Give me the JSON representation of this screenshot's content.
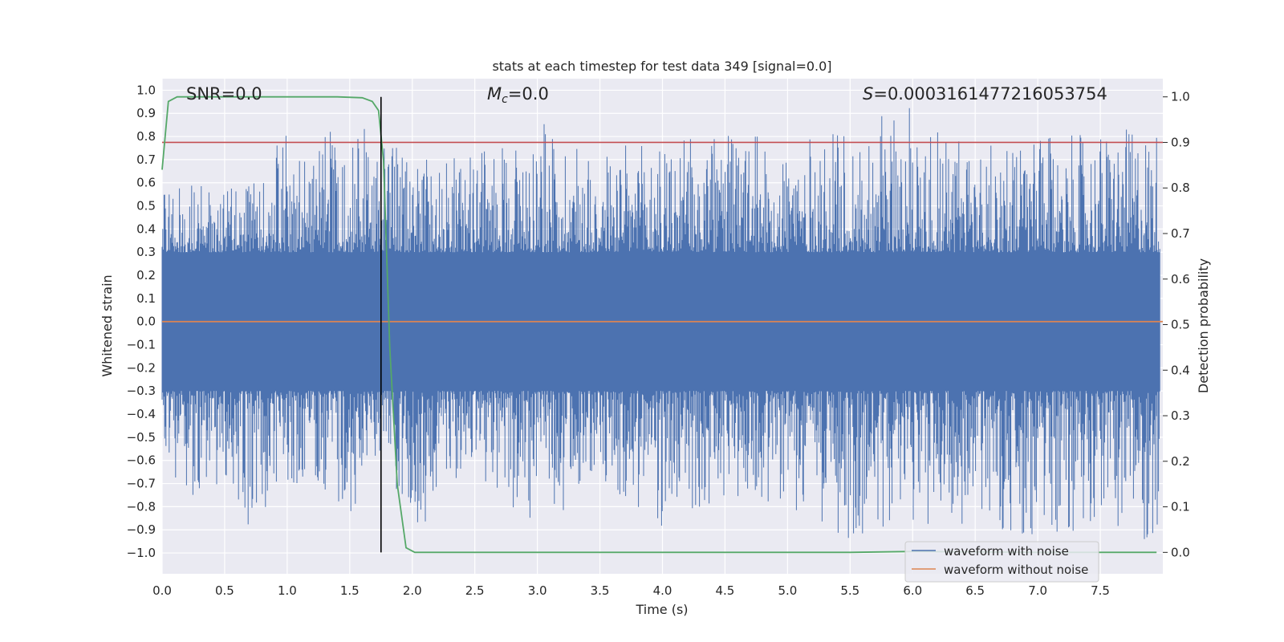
{
  "chart_data": {
    "type": "line",
    "title": "stats at each timestep for test data 349 [signal=0.0]",
    "xlabel": "Time (s)",
    "ylabel": "Whitened strain",
    "y2label": "Detection probability",
    "xlim": [
      0.0,
      8.0
    ],
    "ylim": [
      -1.09,
      1.05
    ],
    "y2lim": [
      -0.047,
      1.04
    ],
    "xticks": [
      "0.0",
      "0.5",
      "1.0",
      "1.5",
      "2.0",
      "2.5",
      "3.0",
      "3.5",
      "4.0",
      "4.5",
      "5.0",
      "5.5",
      "6.0",
      "6.5",
      "7.0",
      "7.5"
    ],
    "yticks": [
      "1.0",
      "0.9",
      "0.8",
      "0.7",
      "0.6",
      "0.5",
      "0.4",
      "0.3",
      "0.2",
      "0.1",
      "0.0",
      "-0.1",
      "-0.2",
      "-0.3",
      "-0.4",
      "-0.5",
      "-0.6",
      "-0.7",
      "-0.8",
      "-0.9",
      "-1.0"
    ],
    "y2ticks": [
      "1.0",
      "0.9",
      "0.8",
      "0.7",
      "0.6",
      "0.5",
      "0.4",
      "0.3",
      "0.2",
      "0.1",
      "0.0"
    ],
    "annotations": {
      "snr": "SNR=0.0",
      "mc_symbol": "M",
      "mc_sub": "c",
      "mc_value": "=0.0",
      "s_symbol": "S",
      "s_value": "=0.0003161477216053754"
    },
    "threshold": 0.9,
    "marker_time": 1.75,
    "noise_envelope": {
      "t": [
        0.0,
        0.25,
        0.5,
        0.75,
        1.0,
        1.25,
        1.5,
        1.75,
        2.0,
        2.5,
        3.0,
        3.5,
        4.0,
        4.5,
        5.0,
        5.5,
        6.0,
        6.5,
        7.0,
        7.5,
        7.95
      ],
      "max": [
        0.55,
        0.62,
        0.58,
        0.6,
        0.85,
        0.78,
        0.89,
        0.8,
        0.72,
        0.72,
        0.87,
        0.75,
        0.78,
        0.82,
        0.78,
        0.83,
        0.95,
        0.77,
        0.79,
        0.82,
        0.85
      ],
      "min": [
        -0.7,
        -0.76,
        -0.92,
        -0.88,
        -0.73,
        -0.7,
        -0.85,
        -0.55,
        -0.93,
        -0.65,
        -0.9,
        -0.7,
        -0.9,
        -0.75,
        -0.8,
        -0.94,
        -0.88,
        -0.88,
        -1.0,
        -0.84,
        -1.0
      ]
    },
    "series": [
      {
        "name": "waveform with noise",
        "color": "#4c72b0"
      },
      {
        "name": "waveform without noise",
        "color": "#dd8452",
        "value": 0.0
      },
      {
        "name": "detection probability",
        "color": "#55a868",
        "t": [
          0.0,
          0.05,
          0.12,
          0.3,
          0.6,
          1.0,
          1.4,
          1.6,
          1.68,
          1.73,
          1.77,
          1.82,
          1.88,
          1.95,
          2.02,
          2.5,
          3.5,
          4.5,
          5.5,
          6.0,
          7.0,
          7.95
        ],
        "p": [
          0.84,
          0.99,
          1.0,
          1.0,
          1.0,
          1.0,
          1.0,
          0.998,
          0.99,
          0.97,
          0.86,
          0.45,
          0.15,
          0.01,
          0.0,
          0.0,
          0.0,
          0.0,
          0.0,
          0.002,
          0.0,
          0.0
        ]
      },
      {
        "name": "threshold",
        "color": "#c44e52"
      }
    ],
    "legend": {
      "position": "lower-right",
      "entries": [
        {
          "label": "waveform with noise",
          "color": "#4c72b0"
        },
        {
          "label": "waveform without noise",
          "color": "#dd8452"
        }
      ]
    }
  }
}
